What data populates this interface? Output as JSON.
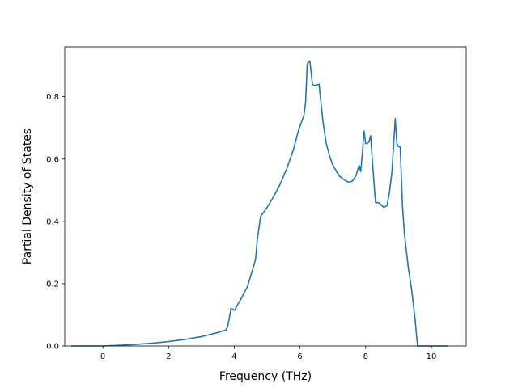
{
  "chart_data": {
    "type": "line",
    "title": "",
    "xlabel": "Frequency (THz)",
    "ylabel": "Partial Density of States",
    "xlim": [
      -1.16,
      11.06
    ],
    "ylim": [
      0.0,
      0.96
    ],
    "xticks": [
      0,
      2,
      4,
      6,
      8,
      10
    ],
    "yticks": [
      0.0,
      0.2,
      0.4,
      0.6,
      0.8
    ],
    "xtick_labels": [
      "0",
      "2",
      "4",
      "6",
      "8",
      "10"
    ],
    "ytick_labels": [
      "0.0",
      "0.2",
      "0.4",
      "0.6",
      "0.8"
    ],
    "grid": false,
    "legend": "none",
    "line_color": "#1f77b4",
    "series": [
      {
        "x": [
          -0.96,
          -0.5,
          0,
          0.5,
          1.0,
          1.5,
          2.0,
          2.5,
          3.0,
          3.5,
          3.75,
          3.8,
          3.85,
          3.9,
          4.0,
          4.2,
          4.4,
          4.6,
          4.65,
          4.7,
          4.8,
          5.0,
          5.2,
          5.4,
          5.6,
          5.8,
          5.95,
          6.05,
          6.12,
          6.17,
          6.22,
          6.3,
          6.38,
          6.45,
          6.58,
          6.7,
          6.8,
          6.9,
          7.0,
          7.2,
          7.4,
          7.5,
          7.6,
          7.7,
          7.8,
          7.85,
          7.9,
          7.95,
          8.0,
          8.05,
          8.1,
          8.15,
          8.2,
          8.3,
          8.4,
          8.55,
          8.65,
          8.72,
          8.8,
          8.9,
          8.95,
          9.0,
          9.05,
          9.12,
          9.18,
          9.3,
          9.4,
          9.5,
          9.58,
          9.65,
          10.0,
          10.5
        ],
        "y": [
          0.0,
          0.0,
          0.0,
          0.002,
          0.005,
          0.009,
          0.014,
          0.021,
          0.03,
          0.043,
          0.052,
          0.063,
          0.09,
          0.121,
          0.114,
          0.15,
          0.19,
          0.26,
          0.28,
          0.34,
          0.415,
          0.445,
          0.48,
          0.52,
          0.57,
          0.63,
          0.69,
          0.72,
          0.74,
          0.78,
          0.905,
          0.915,
          0.84,
          0.835,
          0.84,
          0.72,
          0.65,
          0.61,
          0.58,
          0.545,
          0.53,
          0.525,
          0.53,
          0.545,
          0.58,
          0.56,
          0.62,
          0.69,
          0.65,
          0.65,
          0.655,
          0.675,
          0.6,
          0.46,
          0.46,
          0.445,
          0.45,
          0.49,
          0.56,
          0.73,
          0.65,
          0.64,
          0.64,
          0.45,
          0.36,
          0.25,
          0.18,
          0.09,
          0.0,
          0.0,
          0.0,
          0.0
        ]
      }
    ]
  }
}
